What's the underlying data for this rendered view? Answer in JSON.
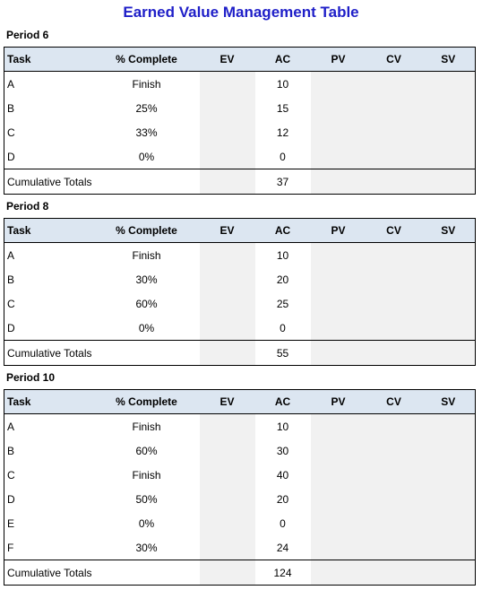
{
  "title": "Earned Value Management Table",
  "columns": [
    "Task",
    "% Complete",
    "EV",
    "AC",
    "PV",
    "CV",
    "SV"
  ],
  "periods": [
    {
      "label": "Period 6",
      "rows": [
        {
          "task": "A",
          "pct": "Finish",
          "ac": "10"
        },
        {
          "task": "B",
          "pct": "25%",
          "ac": "15"
        },
        {
          "task": "C",
          "pct": "33%",
          "ac": "12"
        },
        {
          "task": "D",
          "pct": "0%",
          "ac": "0"
        }
      ],
      "total_label": "Cumulative Totals",
      "total_ac": "37"
    },
    {
      "label": "Period 8",
      "rows": [
        {
          "task": "A",
          "pct": "Finish",
          "ac": "10"
        },
        {
          "task": "B",
          "pct": "30%",
          "ac": "20"
        },
        {
          "task": "C",
          "pct": "60%",
          "ac": "25"
        },
        {
          "task": "D",
          "pct": "0%",
          "ac": "0"
        }
      ],
      "total_label": "Cumulative Totals",
      "total_ac": "55"
    },
    {
      "label": "Period 10",
      "rows": [
        {
          "task": "A",
          "pct": "Finish",
          "ac": "10"
        },
        {
          "task": "B",
          "pct": "60%",
          "ac": "30"
        },
        {
          "task": "C",
          "pct": "Finish",
          "ac": "40"
        },
        {
          "task": "D",
          "pct": "50%",
          "ac": "20"
        },
        {
          "task": "E",
          "pct": "0%",
          "ac": "0"
        },
        {
          "task": "F",
          "pct": "30%",
          "ac": "24"
        }
      ],
      "total_label": "Cumulative Totals",
      "total_ac": "124"
    }
  ]
}
